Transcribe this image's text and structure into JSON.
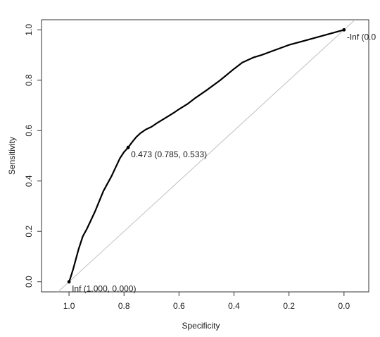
{
  "chart_data": {
    "type": "line",
    "title": "",
    "xlabel": "Specificity",
    "ylabel": "Sensitivity",
    "x_reversed": true,
    "xlim": [
      1.1,
      -0.09
    ],
    "ylim": [
      -0.04,
      1.04
    ],
    "xticks": [
      1.0,
      0.8,
      0.6,
      0.4,
      0.2,
      0.0
    ],
    "xtick_labels": [
      "1.0",
      "0.8",
      "0.6",
      "0.4",
      "0.2",
      "0.0"
    ],
    "yticks": [
      0.0,
      0.2,
      0.4,
      0.6,
      0.8,
      1.0
    ],
    "ytick_labels": [
      "0.0",
      "0.2",
      "0.4",
      "0.6",
      "0.8",
      "1.0"
    ],
    "grid": false,
    "series": [
      {
        "x": [
          1.0,
          0.995,
          0.985,
          0.975,
          0.965,
          0.95,
          0.935,
          0.92,
          0.905,
          0.89,
          0.875,
          0.86,
          0.845,
          0.83,
          0.815,
          0.8,
          0.785,
          0.77,
          0.755,
          0.74,
          0.72,
          0.7,
          0.68,
          0.65,
          0.62,
          0.6,
          0.57,
          0.54,
          0.5,
          0.45,
          0.4,
          0.37,
          0.33,
          0.3,
          0.25,
          0.2,
          0.15,
          0.1,
          0.05,
          0.0
        ],
        "y": [
          0.0,
          0.015,
          0.05,
          0.09,
          0.13,
          0.18,
          0.21,
          0.245,
          0.28,
          0.32,
          0.36,
          0.39,
          0.42,
          0.455,
          0.49,
          0.515,
          0.533,
          0.555,
          0.575,
          0.59,
          0.605,
          0.615,
          0.63,
          0.65,
          0.67,
          0.685,
          0.705,
          0.73,
          0.76,
          0.8,
          0.845,
          0.87,
          0.89,
          0.9,
          0.92,
          0.94,
          0.955,
          0.97,
          0.985,
          1.0
        ],
        "color": "#000000"
      }
    ],
    "reference_line": {
      "from": [
        1.0,
        0.0
      ],
      "to": [
        0.0,
        1.0
      ],
      "color": "#c0c0c0"
    },
    "annotations": [
      {
        "x": 1.0,
        "y": 0.0,
        "text": "Inf (1.000, 0.000)"
      },
      {
        "x": 0.785,
        "y": 0.533,
        "text": "0.473 (0.785, 0.533)"
      },
      {
        "x": 0.0,
        "y": 1.0,
        "text": "-Inf (0.0"
      }
    ]
  }
}
